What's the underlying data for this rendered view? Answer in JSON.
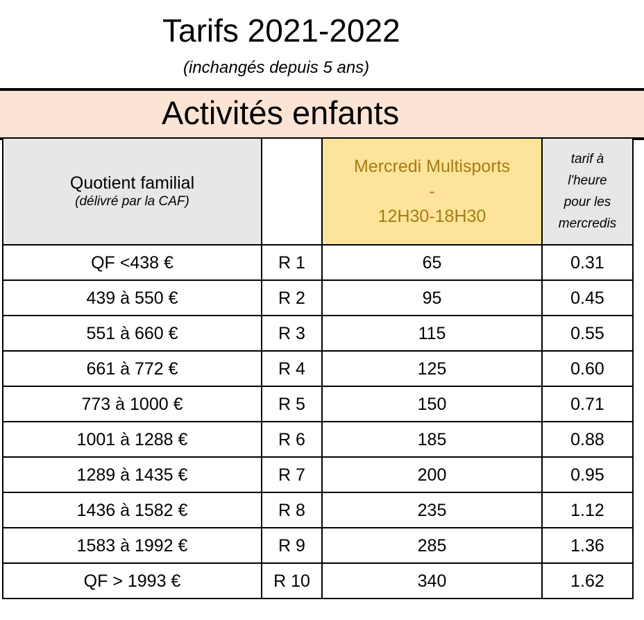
{
  "title": "Tarifs 2021-2022",
  "subtitle": "(inchangés depuis 5 ans)",
  "section": "Activités enfants",
  "header": {
    "qf_label": "Quotient familial",
    "qf_note": "(délivré par la CAF)",
    "code_label": "",
    "activity_line1": "Mercredi Multisports",
    "activity_line2": "-",
    "activity_line3": "12H30-18H30",
    "rate_line1": "tarif à",
    "rate_line2": "l'heure",
    "rate_line3": "pour les",
    "rate_line4": "mercredis"
  },
  "rows": [
    {
      "qf": "QF <438 €",
      "code": "R 1",
      "price": "65",
      "rate": "0.31"
    },
    {
      "qf": "439 à 550 €",
      "code": "R 2",
      "price": "95",
      "rate": "0.45"
    },
    {
      "qf": "551 à 660 €",
      "code": "R 3",
      "price": "115",
      "rate": "0.55"
    },
    {
      "qf": "661 à 772 €",
      "code": "R 4",
      "price": "125",
      "rate": "0.60"
    },
    {
      "qf": "773 à 1000 €",
      "code": "R 5",
      "price": "150",
      "rate": "0.71"
    },
    {
      "qf": "1001 à 1288 €",
      "code": "R 6",
      "price": "185",
      "rate": "0.88"
    },
    {
      "qf": "1289 à 1435 €",
      "code": "R 7",
      "price": "200",
      "rate": "0.95"
    },
    {
      "qf": "1436 à 1582 €",
      "code": "R 8",
      "price": "235",
      "rate": "1.12"
    },
    {
      "qf": "1583 à 1992 €",
      "code": "R 9",
      "price": "285",
      "rate": "1.36"
    },
    {
      "qf": "QF > 1993 €",
      "code": "R 10",
      "price": "340",
      "rate": "1.62"
    }
  ],
  "colors": {
    "band": "#fbe4d4",
    "header_grey": "#e7e7e7",
    "activity_bg": "#fde49a",
    "activity_text": "#a87a14"
  }
}
